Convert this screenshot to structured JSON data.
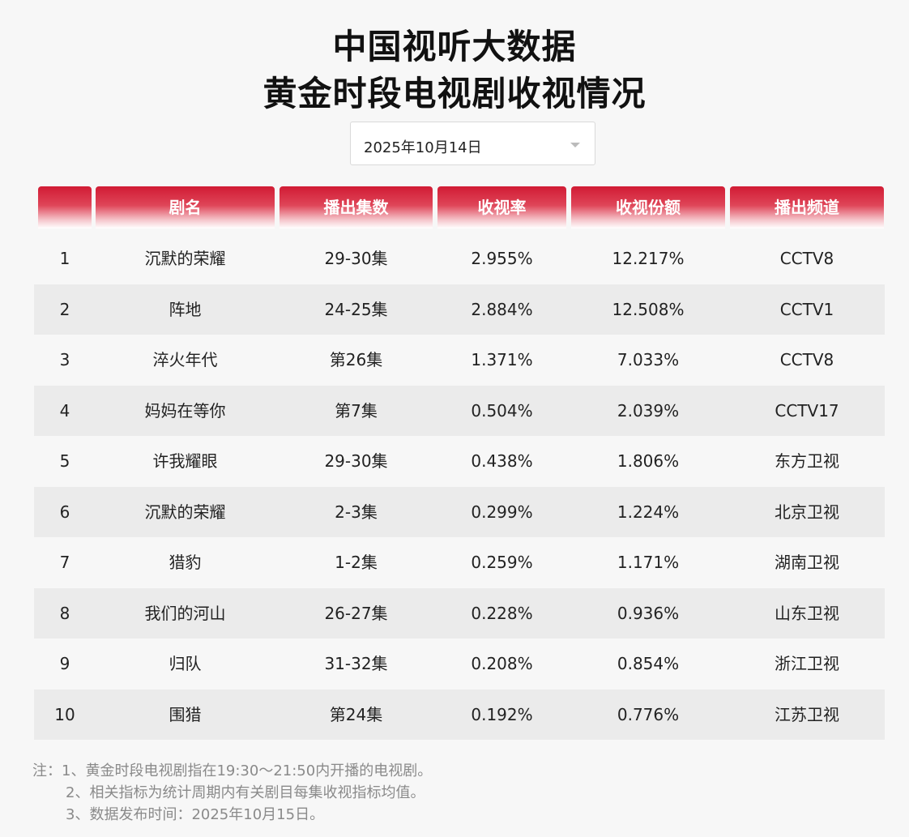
{
  "title": {
    "line1": "中国视听大数据",
    "line2": "黄金时段电视剧收视情况"
  },
  "date_select": {
    "value": "2025年10月14日"
  },
  "table": {
    "headers": [
      "",
      "剧名",
      "播出集数",
      "收视率",
      "收视份额",
      "播出频道"
    ],
    "rows": [
      {
        "rank": "1",
        "name": "沉默的荣耀",
        "episodes": "29-30集",
        "rating": "2.955%",
        "share": "12.217%",
        "channel": "CCTV8"
      },
      {
        "rank": "2",
        "name": "阵地",
        "episodes": "24-25集",
        "rating": "2.884%",
        "share": "12.508%",
        "channel": "CCTV1"
      },
      {
        "rank": "3",
        "name": "淬火年代",
        "episodes": "第26集",
        "rating": "1.371%",
        "share": "7.033%",
        "channel": "CCTV8"
      },
      {
        "rank": "4",
        "name": "妈妈在等你",
        "episodes": "第7集",
        "rating": "0.504%",
        "share": "2.039%",
        "channel": "CCTV17"
      },
      {
        "rank": "5",
        "name": "许我耀眼",
        "episodes": "29-30集",
        "rating": "0.438%",
        "share": "1.806%",
        "channel": "东方卫视"
      },
      {
        "rank": "6",
        "name": "沉默的荣耀",
        "episodes": "2-3集",
        "rating": "0.299%",
        "share": "1.224%",
        "channel": "北京卫视"
      },
      {
        "rank": "7",
        "name": "猎豹",
        "episodes": "1-2集",
        "rating": "0.259%",
        "share": "1.171%",
        "channel": "湖南卫视"
      },
      {
        "rank": "8",
        "name": "我们的河山",
        "episodes": "26-27集",
        "rating": "0.228%",
        "share": "0.936%",
        "channel": "山东卫视"
      },
      {
        "rank": "9",
        "name": "归队",
        "episodes": "31-32集",
        "rating": "0.208%",
        "share": "0.854%",
        "channel": "浙江卫视"
      },
      {
        "rank": "10",
        "name": "围猎",
        "episodes": "第24集",
        "rating": "0.192%",
        "share": "0.776%",
        "channel": "江苏卫视"
      }
    ]
  },
  "notes": {
    "line1": "注：1、黄金时段电视剧指在19:30～21:50内开播的电视剧。",
    "line2": "2、相关指标为统计周期内有关剧目每集收视指标均值。",
    "line3": "3、数据发布时间：2025年10月15日。"
  },
  "colors": {
    "header_red": "#d11b34",
    "alt_row": "#ebebeb",
    "background": "#f7f7f7"
  }
}
